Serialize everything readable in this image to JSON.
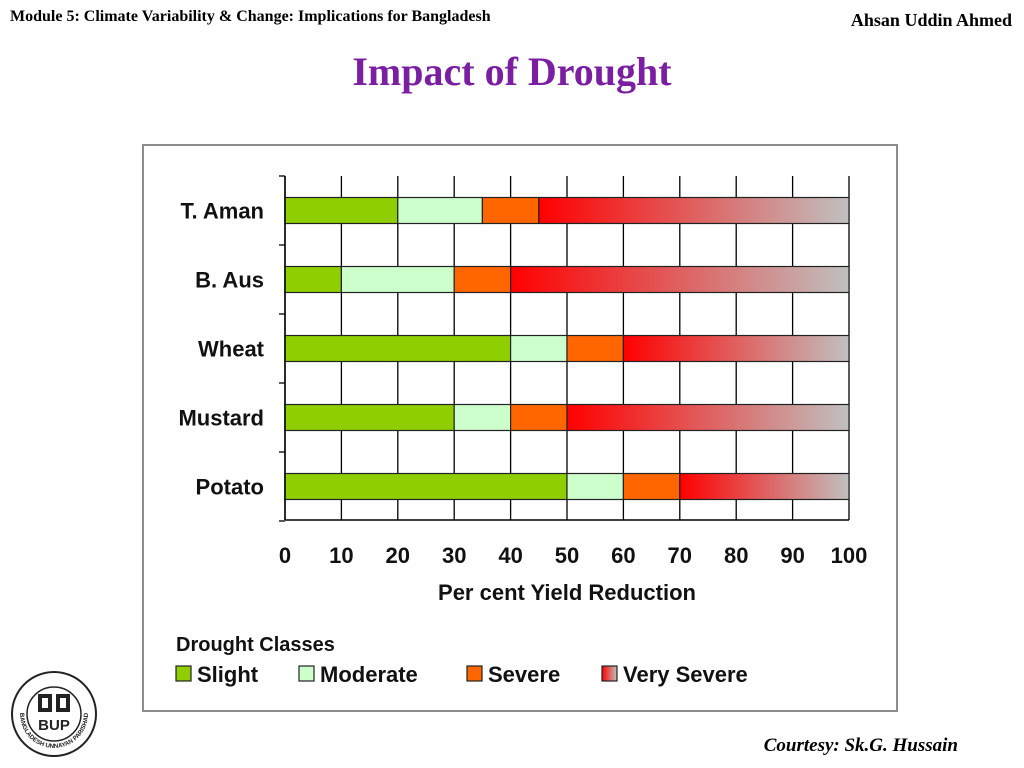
{
  "header": {
    "module_title": "Module 5: Climate Variability & Change: Implications for Bangladesh",
    "author": "Ahsan Uddin Ahmed"
  },
  "slide": {
    "title": "Impact of Drought",
    "courtesy": "Courtesy: Sk.G. Hussain"
  },
  "logo": {
    "icon": "bup-logo-icon",
    "text": "BUP",
    "ring_text": "BANGLADESH UNNAYAN PARISHAD"
  },
  "colors": {
    "slight": "#8fce00",
    "moderate": "#ccffcc",
    "severe": "#ff6600",
    "very_severe_start": "#ff0000",
    "very_severe_end": "#c0c0c0",
    "title": "#7a1fa2"
  },
  "chart_data": {
    "type": "bar",
    "orientation": "horizontal",
    "stacked": true,
    "categories": [
      "T. Aman",
      "B. Aus",
      "Wheat",
      "Mustard",
      "Potato"
    ],
    "series": [
      {
        "name": "Slight",
        "values": [
          20,
          10,
          40,
          30,
          50
        ]
      },
      {
        "name": "Moderate",
        "values": [
          15,
          20,
          10,
          10,
          10
        ]
      },
      {
        "name": "Severe",
        "values": [
          10,
          10,
          10,
          10,
          10
        ]
      },
      {
        "name": "Very Severe",
        "values": [
          55,
          60,
          40,
          50,
          30
        ]
      }
    ],
    "xlabel": "Per cent Yield Reduction",
    "xlim": [
      0,
      100
    ],
    "xticks": [
      0,
      10,
      20,
      30,
      40,
      50,
      60,
      70,
      80,
      90,
      100
    ],
    "grid": true,
    "legend_title": "Drought Classes",
    "legend_position": "bottom"
  }
}
